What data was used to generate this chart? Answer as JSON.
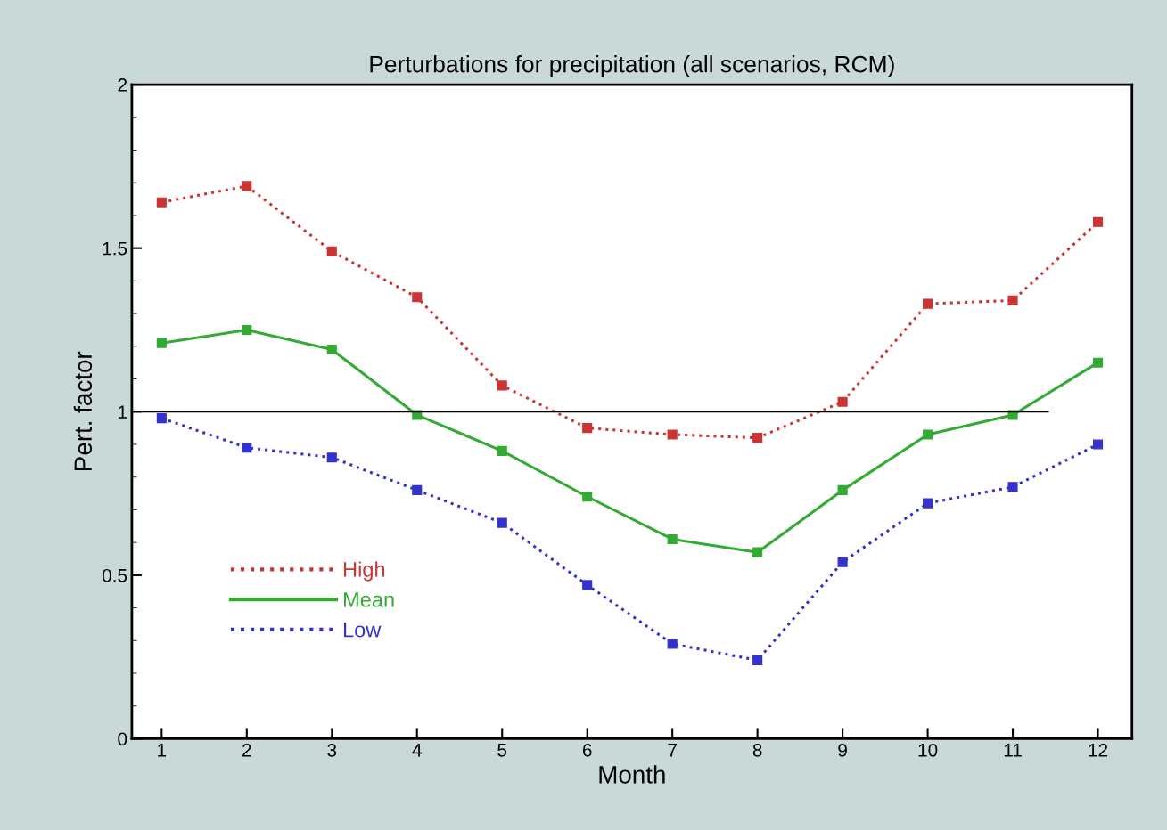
{
  "chart_data": {
    "type": "line",
    "title": "Perturbations for precipitation (all scenarios, RCM)",
    "xlabel": "Month",
    "ylabel": "Pert. factor",
    "x": [
      1,
      2,
      3,
      4,
      5,
      6,
      7,
      8,
      9,
      10,
      11,
      12
    ],
    "series": [
      {
        "name": "High",
        "color": "#cc3333",
        "line_style": "dotted",
        "values": [
          1.64,
          1.69,
          1.49,
          1.35,
          1.08,
          0.95,
          0.93,
          0.92,
          1.03,
          1.33,
          1.34,
          1.58
        ]
      },
      {
        "name": "Mean",
        "color": "#33aa33",
        "line_style": "solid",
        "values": [
          1.21,
          1.25,
          1.19,
          0.99,
          0.88,
          0.74,
          0.61,
          0.57,
          0.76,
          0.93,
          0.99,
          1.15
        ]
      },
      {
        "name": "Low",
        "color": "#3333cc",
        "line_style": "dotted",
        "values": [
          0.98,
          0.89,
          0.86,
          0.76,
          0.66,
          0.47,
          0.29,
          0.24,
          0.54,
          0.72,
          0.77,
          0.9
        ]
      }
    ],
    "marker": "square",
    "xlim": [
      0.65,
      12.4
    ],
    "xticks": [
      1,
      2,
      3,
      4,
      5,
      6,
      7,
      8,
      9,
      10,
      11,
      12
    ],
    "ylim": [
      0,
      2
    ],
    "yticks": [
      0,
      0.5,
      1,
      1.5,
      2
    ],
    "ref_lines": [
      {
        "axis": "y",
        "value": 1,
        "color": "#000000"
      }
    ],
    "grid": false,
    "legend": "lower left"
  }
}
